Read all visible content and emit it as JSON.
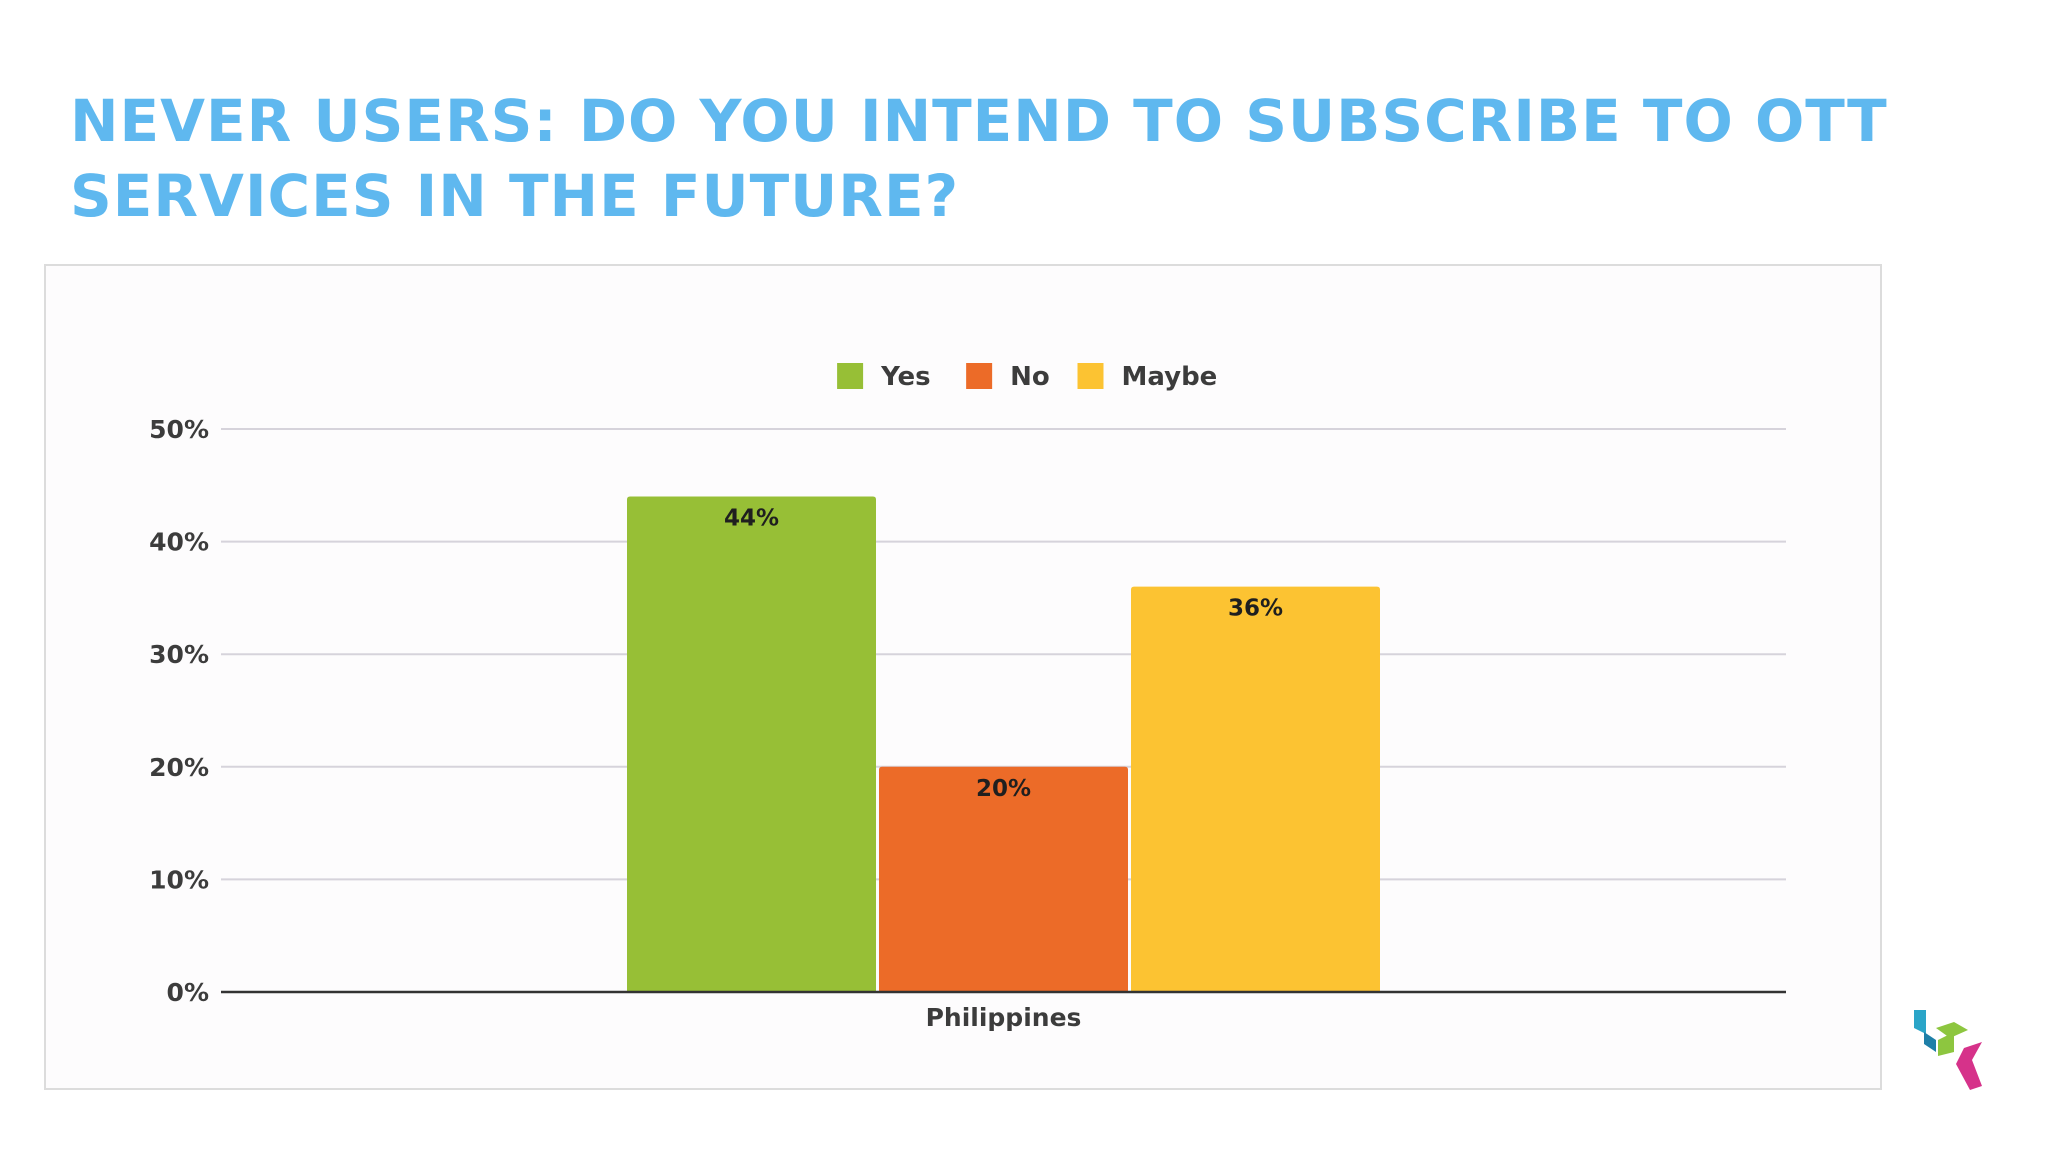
{
  "slide": {
    "title": "NEVER USERS: DO YOU INTEND TO SUBSCRIBE TO OTT SERVICES IN THE FUTURE?"
  },
  "chart_data": {
    "type": "bar",
    "categories": [
      "Philippines"
    ],
    "series": [
      {
        "name": "Yes",
        "color": "#97bf36",
        "values": [
          44
        ],
        "label": "44%"
      },
      {
        "name": "No",
        "color": "#ec6b28",
        "values": [
          20
        ],
        "label": "20%"
      },
      {
        "name": "Maybe",
        "color": "#fcc332",
        "values": [
          36
        ],
        "label": "36%"
      }
    ],
    "ylim": [
      0,
      50
    ],
    "yticks": [
      0,
      10,
      20,
      30,
      40,
      50
    ],
    "ytick_labels": [
      "0%",
      "10%",
      "20%",
      "30%",
      "40%",
      "50%"
    ],
    "xlabel": "",
    "ylabel": "",
    "grid": true,
    "legend_position": "top-center"
  },
  "logo": {
    "colors": [
      "#2aa5c8",
      "#1e7fa8",
      "#8dc63f",
      "#d6328a"
    ]
  }
}
